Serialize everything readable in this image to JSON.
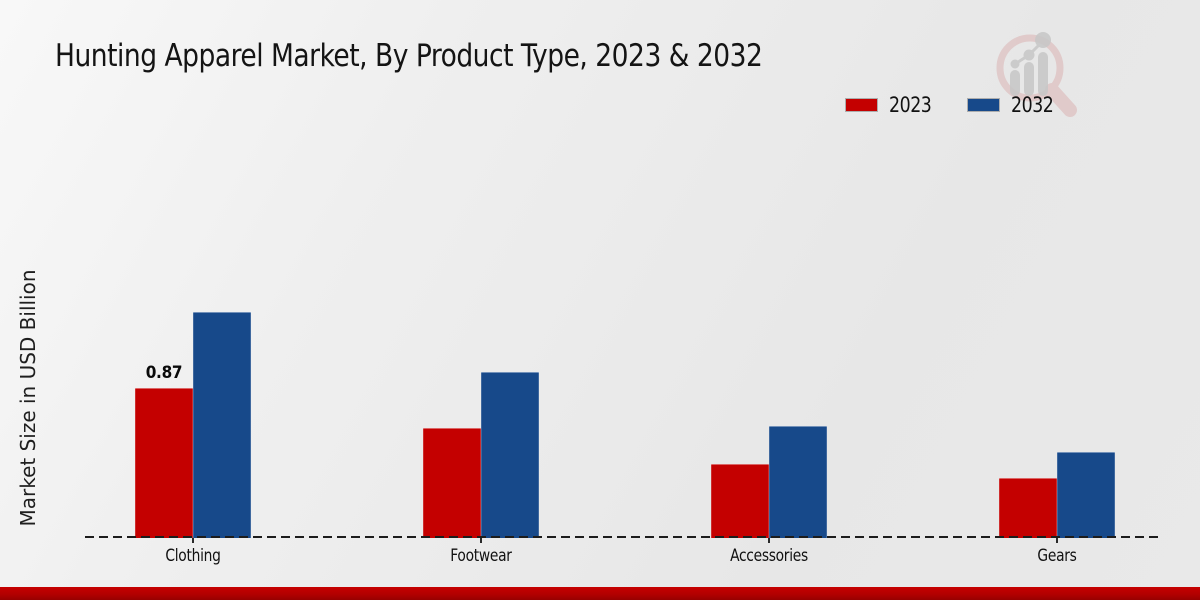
{
  "title": "Hunting Apparel Market, By Product Type, 2023 & 2032",
  "ylabel": "Market Size in USD Billion",
  "legend": [
    {
      "label": "2023",
      "color": "#c40000"
    },
    {
      "label": "2032",
      "color": "#17498a"
    }
  ],
  "footer_color": "#b00000",
  "watermark": "market-research-magnifier-logo",
  "chart_data": {
    "type": "bar",
    "categories": [
      "Clothing",
      "Footwear",
      "Accessories",
      "Gears"
    ],
    "series": [
      {
        "name": "2023",
        "color": "#c40000",
        "values": [
          0.87,
          0.64,
          0.43,
          0.35
        ]
      },
      {
        "name": "2032",
        "color": "#17498a",
        "values": [
          1.31,
          0.96,
          0.65,
          0.5
        ]
      }
    ],
    "title": "Hunting Apparel Market, By Product Type, 2023 & 2032",
    "xlabel": "",
    "ylabel": "Market Size in USD Billion",
    "ylim": [
      0,
      2.2
    ],
    "grid": false,
    "y_axis_ticks_visible": false,
    "baseline_style": "dashed",
    "legend_position": "top-right",
    "data_labels": [
      {
        "series": "2023",
        "category": "Clothing",
        "text": "0.87"
      }
    ]
  }
}
